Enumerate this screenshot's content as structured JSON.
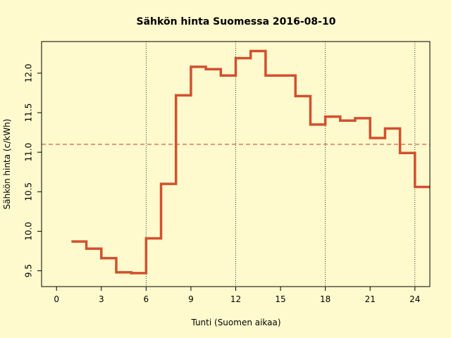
{
  "chart_data": {
    "type": "line",
    "step": true,
    "title": "Sähkön hinta Suomessa 2016-08-10",
    "xlabel": "Tunti (Suomen aikaa)",
    "ylabel": "Sähkön hinta (c/kWh)",
    "xlim": [
      -1,
      25
    ],
    "ylim": [
      9.3,
      12.4
    ],
    "x_ticks": [
      0,
      3,
      6,
      9,
      12,
      15,
      18,
      21,
      24
    ],
    "y_ticks": [
      9.5,
      10.0,
      10.5,
      11.0,
      11.5,
      12.0
    ],
    "y_tick_labels": [
      "9.5",
      "10.0",
      "10.5",
      "11.0",
      "11.5",
      "12.0"
    ],
    "vertical_reference_lines": [
      6,
      12,
      18,
      24
    ],
    "mean_line": 11.1,
    "line_color": "#d2502f",
    "mean_line_color": "#d2502f",
    "background_color": "#fffacd",
    "series": [
      {
        "x": [
          1,
          2,
          3,
          4,
          5,
          6,
          7,
          8,
          9,
          10,
          11,
          12,
          13,
          14,
          15,
          16,
          17,
          18,
          19,
          20,
          21,
          22,
          23,
          24
        ],
        "values": [
          9.87,
          9.78,
          9.66,
          9.48,
          9.47,
          9.91,
          10.6,
          11.72,
          12.08,
          12.05,
          11.97,
          12.19,
          12.28,
          11.97,
          11.97,
          11.71,
          11.35,
          11.45,
          11.4,
          11.43,
          11.18,
          11.3,
          10.99,
          10.56
        ]
      }
    ]
  }
}
